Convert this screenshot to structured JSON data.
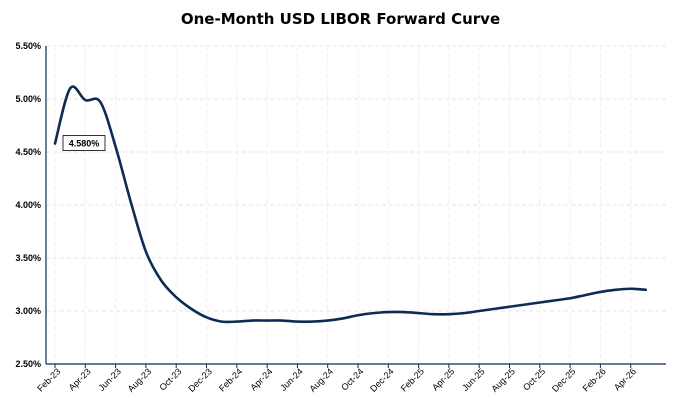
{
  "chart_data": {
    "type": "line",
    "title": "One-Month USD LIBOR Forward Curve",
    "xlabel": "",
    "ylabel": "",
    "ylim": [
      2.5,
      5.5
    ],
    "yticks": [
      "2.50%",
      "3.00%",
      "3.50%",
      "4.00%",
      "4.50%",
      "5.00%",
      "5.50%"
    ],
    "ytick_values": [
      2.5,
      3.0,
      3.5,
      4.0,
      4.5,
      5.0,
      5.5
    ],
    "xticks": [
      "Feb-23",
      "Apr-23",
      "Jun-23",
      "Aug-23",
      "Oct-23",
      "Dec-23",
      "Feb-24",
      "Apr-24",
      "Jun-24",
      "Aug-24",
      "Oct-24",
      "Dec-24",
      "Feb-25",
      "Apr-25",
      "Jun-25",
      "Aug-25",
      "Oct-25",
      "Dec-25",
      "Feb-26",
      "Apr-26"
    ],
    "x": [
      "Feb-23",
      "Mar-23",
      "Apr-23",
      "May-23",
      "Jun-23",
      "Jul-23",
      "Aug-23",
      "Sep-23",
      "Oct-23",
      "Nov-23",
      "Dec-23",
      "Jan-24",
      "Feb-24",
      "Mar-24",
      "Apr-24",
      "May-24",
      "Jun-24",
      "Jul-24",
      "Aug-24",
      "Sep-24",
      "Oct-24",
      "Nov-24",
      "Dec-24",
      "Jan-25",
      "Feb-25",
      "Mar-25",
      "Apr-25",
      "May-25",
      "Jun-25",
      "Jul-25",
      "Aug-25",
      "Sep-25",
      "Oct-25",
      "Nov-25",
      "Dec-25",
      "Jan-26",
      "Feb-26",
      "Mar-26",
      "Apr-26",
      "May-26"
    ],
    "series": [
      {
        "values": [
          4.58,
          5.1,
          4.99,
          4.97,
          4.55,
          4.03,
          3.56,
          3.29,
          3.13,
          3.02,
          2.94,
          2.9,
          2.9,
          2.91,
          2.91,
          2.91,
          2.9,
          2.9,
          2.91,
          2.93,
          2.96,
          2.98,
          2.99,
          2.99,
          2.98,
          2.97,
          2.97,
          2.98,
          3.0,
          3.02,
          3.04,
          3.06,
          3.08,
          3.1,
          3.12,
          3.15,
          3.18,
          3.2,
          3.21,
          3.2
        ],
        "color": "#0d2c54"
      }
    ],
    "annotations": [
      {
        "text": "4.580%",
        "x": "Feb-23",
        "y": 4.58
      }
    ],
    "grid": true,
    "legend": "none"
  }
}
